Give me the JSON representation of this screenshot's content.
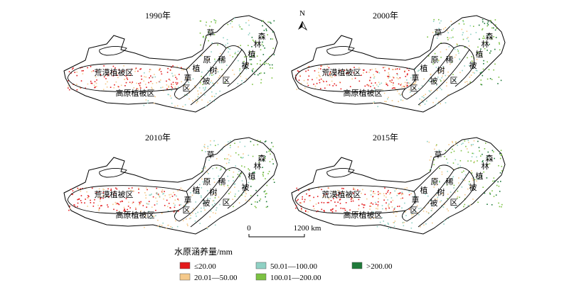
{
  "panels": [
    {
      "year": "1990年",
      "desert": "荒漠植被区",
      "plateau": "高原植被区",
      "chars": [
        "草",
        "原",
        "稀",
        "植",
        "树",
        "草",
        "被",
        "区",
        "区",
        "森",
        "林",
        "植",
        "被"
      ]
    },
    {
      "year": "2000年",
      "desert": "荒漠植被区",
      "plateau": "高原植被区",
      "chars": [
        "草",
        "原",
        "稀",
        "植",
        "树",
        "草",
        "被",
        "区",
        "区",
        "森",
        "林",
        "植",
        "被"
      ]
    },
    {
      "year": "2010年",
      "desert": "荒漠植被区",
      "plateau": "高原植被区",
      "chars": [
        "草",
        "原",
        "稀",
        "植",
        "树",
        "草",
        "被",
        "区",
        "区",
        "森",
        "林",
        "植",
        "被"
      ]
    },
    {
      "year": "2015年",
      "desert": "荒漠植被区",
      "plateau": "高原植被区",
      "chars": [
        "草",
        "原",
        "稀",
        "植",
        "树",
        "草",
        "被",
        "区",
        "区",
        "森",
        "林",
        "植",
        "被"
      ]
    }
  ],
  "north": "N",
  "scale": {
    "start": "0",
    "end": "1200 km"
  },
  "legend": {
    "title": "水原涵养量/mm",
    "items": [
      {
        "label": "≤20.00",
        "color": "#e31a1c"
      },
      {
        "label": "20.01—50.00",
        "color": "#f5c98a"
      },
      {
        "label": "50.01—100.00",
        "color": "#8fd1c4"
      },
      {
        "label": "100.01—200.00",
        "color": "#7cc242"
      },
      {
        "label": ">200.00",
        "color": "#1f7a3a"
      }
    ]
  }
}
